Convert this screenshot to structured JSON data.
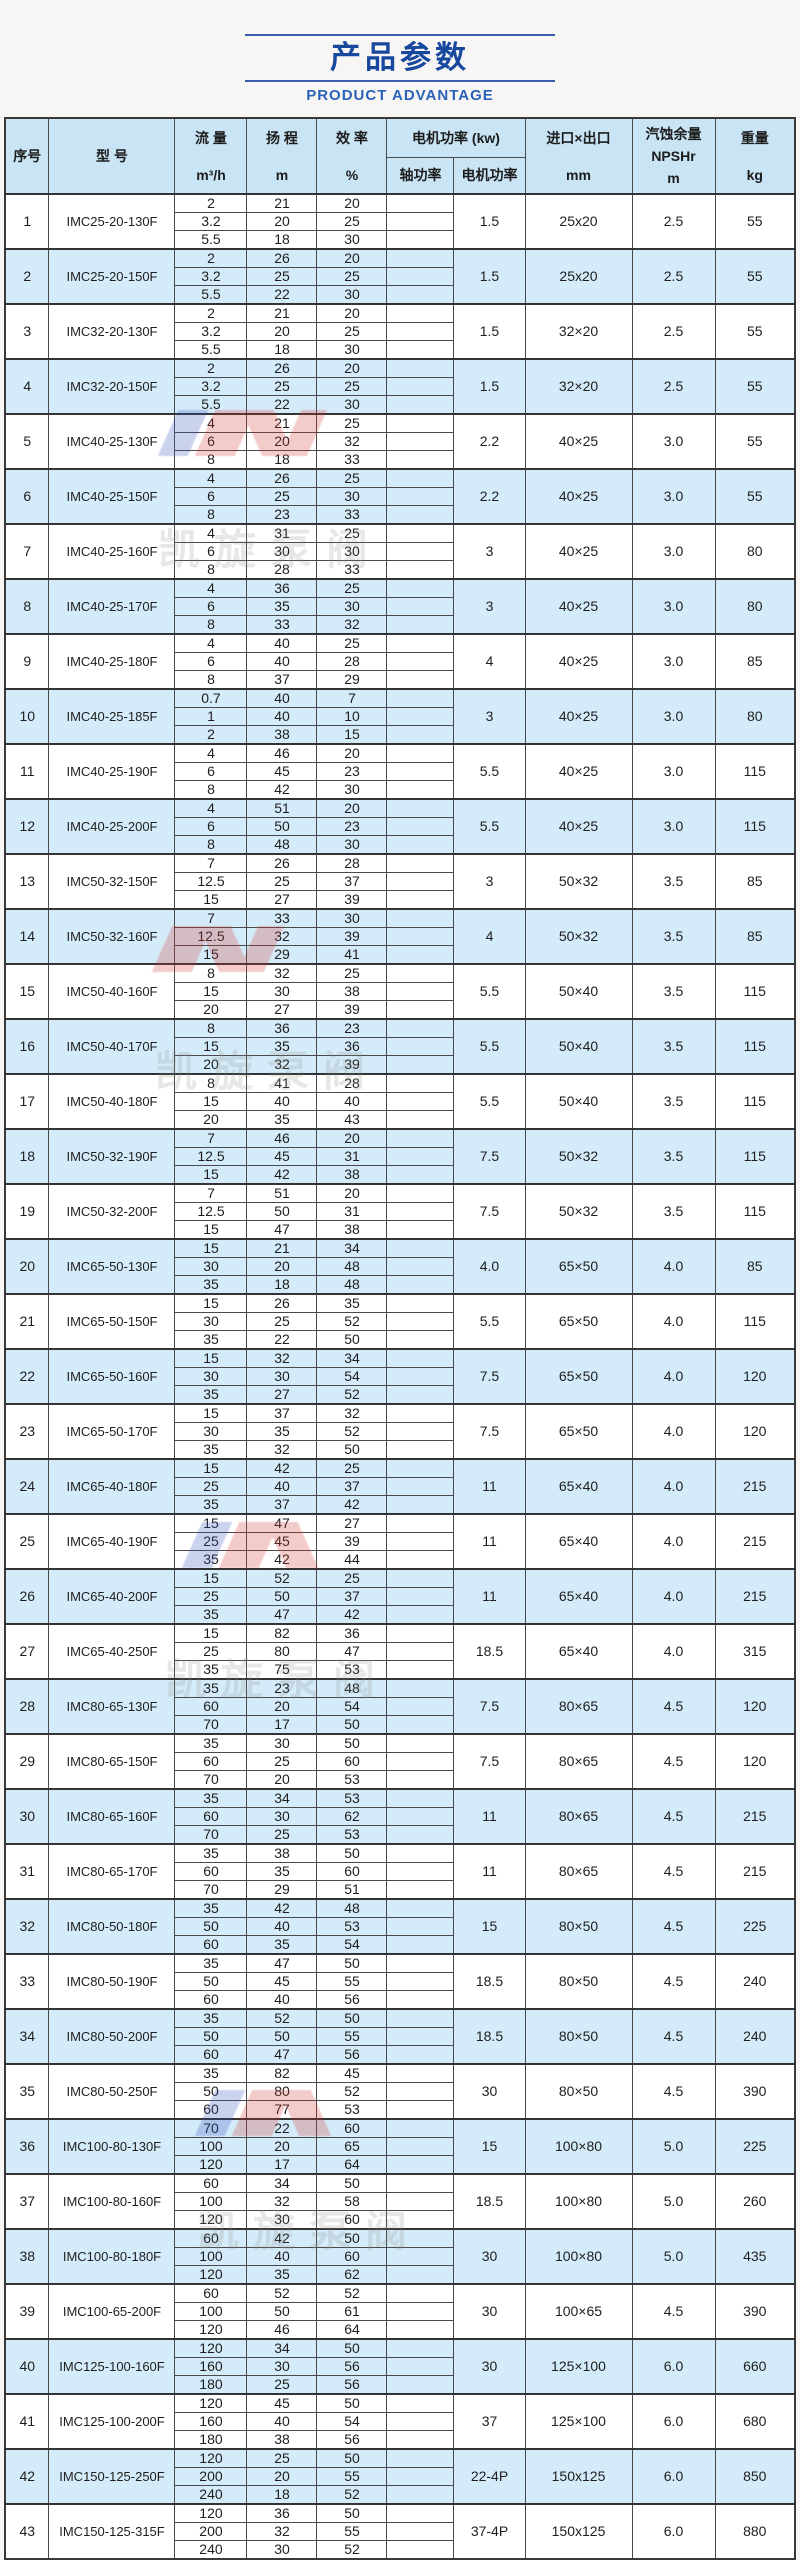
{
  "page": {
    "title": "产品参数",
    "subtitle": "PRODUCT ADVANTAGE"
  },
  "watermark": {
    "brand_text": "凯旋泵阀"
  },
  "table": {
    "headers": {
      "seq": "序号",
      "model": "型 号",
      "flow_name": "流 量",
      "flow_unit": "m³/h",
      "head_name": "扬 程",
      "head_unit": "m",
      "eff_name": "效 率",
      "eff_unit": "%",
      "power_group": "电机功率 (kw)",
      "shaft_power": "轴功率",
      "motor_power": "电机功率",
      "ports_name": "进口×出口",
      "ports_unit": "mm",
      "npsh_line1": "汽蚀余量",
      "npsh_line2": "NPSHr",
      "npsh_line3": "m",
      "weight_name": "重量",
      "weight_unit": "kg"
    },
    "rows": [
      {
        "no": "1",
        "model": "IMC25-20-130F",
        "flow": [
          "2",
          "3.2",
          "5.5"
        ],
        "head": [
          "21",
          "20",
          "18"
        ],
        "eff": [
          "20",
          "25",
          "30"
        ],
        "motor": "1.5",
        "ports": "25x20",
        "npsh": "2.5",
        "weight": "55"
      },
      {
        "no": "2",
        "model": "IMC25-20-150F",
        "flow": [
          "2",
          "3.2",
          "5.5"
        ],
        "head": [
          "26",
          "25",
          "22"
        ],
        "eff": [
          "20",
          "25",
          "30"
        ],
        "motor": "1.5",
        "ports": "25x20",
        "npsh": "2.5",
        "weight": "55"
      },
      {
        "no": "3",
        "model": "IMC32-20-130F",
        "flow": [
          "2",
          "3.2",
          "5.5"
        ],
        "head": [
          "21",
          "20",
          "18"
        ],
        "eff": [
          "20",
          "25",
          "30"
        ],
        "motor": "1.5",
        "ports": "32×20",
        "npsh": "2.5",
        "weight": "55"
      },
      {
        "no": "4",
        "model": "IMC32-20-150F",
        "flow": [
          "2",
          "3.2",
          "5.5"
        ],
        "head": [
          "26",
          "25",
          "22"
        ],
        "eff": [
          "20",
          "25",
          "30"
        ],
        "motor": "1.5",
        "ports": "32×20",
        "npsh": "2.5",
        "weight": "55"
      },
      {
        "no": "5",
        "model": "IMC40-25-130F",
        "flow": [
          "4",
          "6",
          "8"
        ],
        "head": [
          "21",
          "20",
          "18"
        ],
        "eff": [
          "25",
          "32",
          "33"
        ],
        "motor": "2.2",
        "ports": "40×25",
        "npsh": "3.0",
        "weight": "55"
      },
      {
        "no": "6",
        "model": "IMC40-25-150F",
        "flow": [
          "4",
          "6",
          "8"
        ],
        "head": [
          "26",
          "25",
          "23"
        ],
        "eff": [
          "25",
          "30",
          "33"
        ],
        "motor": "2.2",
        "ports": "40×25",
        "npsh": "3.0",
        "weight": "55"
      },
      {
        "no": "7",
        "model": "IMC40-25-160F",
        "flow": [
          "4",
          "6",
          "8"
        ],
        "head": [
          "31",
          "30",
          "28"
        ],
        "eff": [
          "25",
          "30",
          "33"
        ],
        "motor": "3",
        "ports": "40×25",
        "npsh": "3.0",
        "weight": "80"
      },
      {
        "no": "8",
        "model": "IMC40-25-170F",
        "flow": [
          "4",
          "6",
          "8"
        ],
        "head": [
          "36",
          "35",
          "33"
        ],
        "eff": [
          "25",
          "30",
          "32"
        ],
        "motor": "3",
        "ports": "40×25",
        "npsh": "3.0",
        "weight": "80"
      },
      {
        "no": "9",
        "model": "IMC40-25-180F",
        "flow": [
          "4",
          "6",
          "8"
        ],
        "head": [
          "40",
          "40",
          "37"
        ],
        "eff": [
          "25",
          "28",
          "29"
        ],
        "motor": "4",
        "ports": "40×25",
        "npsh": "3.0",
        "weight": "85"
      },
      {
        "no": "10",
        "model": "IMC40-25-185F",
        "flow": [
          "0.7",
          "1",
          "2"
        ],
        "head": [
          "40",
          "40",
          "38"
        ],
        "eff": [
          "7",
          "10",
          "15"
        ],
        "motor": "3",
        "ports": "40×25",
        "npsh": "3.0",
        "weight": "80"
      },
      {
        "no": "11",
        "model": "IMC40-25-190F",
        "flow": [
          "4",
          "6",
          "8"
        ],
        "head": [
          "46",
          "45",
          "42"
        ],
        "eff": [
          "20",
          "23",
          "30"
        ],
        "motor": "5.5",
        "ports": "40×25",
        "npsh": "3.0",
        "weight": "115"
      },
      {
        "no": "12",
        "model": "IMC40-25-200F",
        "flow": [
          "4",
          "6",
          "8"
        ],
        "head": [
          "51",
          "50",
          "48"
        ],
        "eff": [
          "20",
          "23",
          "30"
        ],
        "motor": "5.5",
        "ports": "40×25",
        "npsh": "3.0",
        "weight": "115"
      },
      {
        "no": "13",
        "model": "IMC50-32-150F",
        "flow": [
          "7",
          "12.5",
          "15"
        ],
        "head": [
          "26",
          "25",
          "27"
        ],
        "eff": [
          "28",
          "37",
          "39"
        ],
        "motor": "3",
        "ports": "50×32",
        "npsh": "3.5",
        "weight": "85"
      },
      {
        "no": "14",
        "model": "IMC50-32-160F",
        "flow": [
          "7",
          "12.5",
          "15"
        ],
        "head": [
          "33",
          "32",
          "29"
        ],
        "eff": [
          "30",
          "39",
          "41"
        ],
        "motor": "4",
        "ports": "50×32",
        "npsh": "3.5",
        "weight": "85"
      },
      {
        "no": "15",
        "model": "IMC50-40-160F",
        "flow": [
          "8",
          "15",
          "20"
        ],
        "head": [
          "32",
          "30",
          "27"
        ],
        "eff": [
          "25",
          "38",
          "39"
        ],
        "motor": "5.5",
        "ports": "50×40",
        "npsh": "3.5",
        "weight": "115"
      },
      {
        "no": "16",
        "model": "IMC50-40-170F",
        "flow": [
          "8",
          "15",
          "20"
        ],
        "head": [
          "36",
          "35",
          "32"
        ],
        "eff": [
          "23",
          "36",
          "39"
        ],
        "motor": "5.5",
        "ports": "50×40",
        "npsh": "3.5",
        "weight": "115"
      },
      {
        "no": "17",
        "model": "IMC50-40-180F",
        "flow": [
          "8",
          "15",
          "20"
        ],
        "head": [
          "41",
          "40",
          "35"
        ],
        "eff": [
          "28",
          "40",
          "43"
        ],
        "motor": "5.5",
        "ports": "50×40",
        "npsh": "3.5",
        "weight": "115"
      },
      {
        "no": "18",
        "model": "IMC50-32-190F",
        "flow": [
          "7",
          "12.5",
          "15"
        ],
        "head": [
          "46",
          "45",
          "42"
        ],
        "eff": [
          "20",
          "31",
          "38"
        ],
        "motor": "7.5",
        "ports": "50×32",
        "npsh": "3.5",
        "weight": "115"
      },
      {
        "no": "19",
        "model": "IMC50-32-200F",
        "flow": [
          "7",
          "12.5",
          "15"
        ],
        "head": [
          "51",
          "50",
          "47"
        ],
        "eff": [
          "20",
          "31",
          "38"
        ],
        "motor": "7.5",
        "ports": "50×32",
        "npsh": "3.5",
        "weight": "115"
      },
      {
        "no": "20",
        "model": "IMC65-50-130F",
        "flow": [
          "15",
          "30",
          "35"
        ],
        "head": [
          "21",
          "20",
          "18"
        ],
        "eff": [
          "34",
          "48",
          "48"
        ],
        "motor": "4.0",
        "ports": "65×50",
        "npsh": "4.0",
        "weight": "85"
      },
      {
        "no": "21",
        "model": "IMC65-50-150F",
        "flow": [
          "15",
          "30",
          "35"
        ],
        "head": [
          "26",
          "25",
          "22"
        ],
        "eff": [
          "35",
          "52",
          "50"
        ],
        "motor": "5.5",
        "ports": "65×50",
        "npsh": "4.0",
        "weight": "115"
      },
      {
        "no": "22",
        "model": "IMC65-50-160F",
        "flow": [
          "15",
          "30",
          "35"
        ],
        "head": [
          "32",
          "30",
          "27"
        ],
        "eff": [
          "34",
          "54",
          "52"
        ],
        "motor": "7.5",
        "ports": "65×50",
        "npsh": "4.0",
        "weight": "120"
      },
      {
        "no": "23",
        "model": "IMC65-50-170F",
        "flow": [
          "15",
          "30",
          "35"
        ],
        "head": [
          "37",
          "35",
          "32"
        ],
        "eff": [
          "32",
          "52",
          "50"
        ],
        "motor": "7.5",
        "ports": "65×50",
        "npsh": "4.0",
        "weight": "120"
      },
      {
        "no": "24",
        "model": "IMC65-40-180F",
        "flow": [
          "15",
          "25",
          "35"
        ],
        "head": [
          "42",
          "40",
          "37"
        ],
        "eff": [
          "25",
          "37",
          "42"
        ],
        "motor": "11",
        "ports": "65×40",
        "npsh": "4.0",
        "weight": "215"
      },
      {
        "no": "25",
        "model": "IMC65-40-190F",
        "flow": [
          "15",
          "25",
          "35"
        ],
        "head": [
          "47",
          "45",
          "42"
        ],
        "eff": [
          "27",
          "39",
          "44"
        ],
        "motor": "11",
        "ports": "65×40",
        "npsh": "4.0",
        "weight": "215"
      },
      {
        "no": "26",
        "model": "IMC65-40-200F",
        "flow": [
          "15",
          "25",
          "35"
        ],
        "head": [
          "52",
          "50",
          "47"
        ],
        "eff": [
          "25",
          "37",
          "42"
        ],
        "motor": "11",
        "ports": "65×40",
        "npsh": "4.0",
        "weight": "215"
      },
      {
        "no": "27",
        "model": "IMC65-40-250F",
        "flow": [
          "15",
          "25",
          "35"
        ],
        "head": [
          "82",
          "80",
          "75"
        ],
        "eff": [
          "36",
          "47",
          "53"
        ],
        "motor": "18.5",
        "ports": "65×40",
        "npsh": "4.0",
        "weight": "315"
      },
      {
        "no": "28",
        "model": "IMC80-65-130F",
        "flow": [
          "35",
          "60",
          "70"
        ],
        "head": [
          "23",
          "20",
          "17"
        ],
        "eff": [
          "48",
          "54",
          "50"
        ],
        "motor": "7.5",
        "ports": "80×65",
        "npsh": "4.5",
        "weight": "120"
      },
      {
        "no": "29",
        "model": "IMC80-65-150F",
        "flow": [
          "35",
          "60",
          "70"
        ],
        "head": [
          "30",
          "25",
          "20"
        ],
        "eff": [
          "50",
          "60",
          "53"
        ],
        "motor": "7.5",
        "ports": "80×65",
        "npsh": "4.5",
        "weight": "120"
      },
      {
        "no": "30",
        "model": "IMC80-65-160F",
        "flow": [
          "35",
          "60",
          "70"
        ],
        "head": [
          "34",
          "30",
          "25"
        ],
        "eff": [
          "53",
          "62",
          "53"
        ],
        "motor": "11",
        "ports": "80×65",
        "npsh": "4.5",
        "weight": "215"
      },
      {
        "no": "31",
        "model": "IMC80-65-170F",
        "flow": [
          "35",
          "60",
          "70"
        ],
        "head": [
          "38",
          "35",
          "29"
        ],
        "eff": [
          "50",
          "60",
          "51"
        ],
        "motor": "11",
        "ports": "80×65",
        "npsh": "4.5",
        "weight": "215"
      },
      {
        "no": "32",
        "model": "IMC80-50-180F",
        "flow": [
          "35",
          "50",
          "60"
        ],
        "head": [
          "42",
          "40",
          "35"
        ],
        "eff": [
          "48",
          "53",
          "54"
        ],
        "motor": "15",
        "ports": "80×50",
        "npsh": "4.5",
        "weight": "225"
      },
      {
        "no": "33",
        "model": "IMC80-50-190F",
        "flow": [
          "35",
          "50",
          "60"
        ],
        "head": [
          "47",
          "45",
          "40"
        ],
        "eff": [
          "50",
          "55",
          "56"
        ],
        "motor": "18.5",
        "ports": "80×50",
        "npsh": "4.5",
        "weight": "240"
      },
      {
        "no": "34",
        "model": "IMC80-50-200F",
        "flow": [
          "35",
          "50",
          "60"
        ],
        "head": [
          "52",
          "50",
          "47"
        ],
        "eff": [
          "50",
          "55",
          "56"
        ],
        "motor": "18.5",
        "ports": "80×50",
        "npsh": "4.5",
        "weight": "240"
      },
      {
        "no": "35",
        "model": "IMC80-50-250F",
        "flow": [
          "35",
          "50",
          "60"
        ],
        "head": [
          "82",
          "80",
          "77"
        ],
        "eff": [
          "45",
          "52",
          "53"
        ],
        "motor": "30",
        "ports": "80×50",
        "npsh": "4.5",
        "weight": "390"
      },
      {
        "no": "36",
        "model": "IMC100-80-130F",
        "flow": [
          "70",
          "100",
          "120"
        ],
        "head": [
          "22",
          "20",
          "17"
        ],
        "eff": [
          "60",
          "65",
          "64"
        ],
        "motor": "15",
        "ports": "100×80",
        "npsh": "5.0",
        "weight": "225"
      },
      {
        "no": "37",
        "model": "IMC100-80-160F",
        "flow": [
          "60",
          "100",
          "120"
        ],
        "head": [
          "34",
          "32",
          "30"
        ],
        "eff": [
          "50",
          "58",
          "60"
        ],
        "motor": "18.5",
        "ports": "100×80",
        "npsh": "5.0",
        "weight": "260"
      },
      {
        "no": "38",
        "model": "IMC100-80-180F",
        "flow": [
          "60",
          "100",
          "120"
        ],
        "head": [
          "42",
          "40",
          "35"
        ],
        "eff": [
          "50",
          "60",
          "62"
        ],
        "motor": "30",
        "ports": "100×80",
        "npsh": "5.0",
        "weight": "435"
      },
      {
        "no": "39",
        "model": "IMC100-65-200F",
        "flow": [
          "60",
          "100",
          "120"
        ],
        "head": [
          "52",
          "50",
          "46"
        ],
        "eff": [
          "52",
          "61",
          "64"
        ],
        "motor": "30",
        "ports": "100×65",
        "npsh": "4.5",
        "weight": "390"
      },
      {
        "no": "40",
        "model": "IMC125-100-160F",
        "flow": [
          "120",
          "160",
          "180"
        ],
        "head": [
          "34",
          "30",
          "25"
        ],
        "eff": [
          "50",
          "56",
          "56"
        ],
        "motor": "30",
        "ports": "125×100",
        "npsh": "6.0",
        "weight": "660"
      },
      {
        "no": "41",
        "model": "IMC125-100-200F",
        "flow": [
          "120",
          "160",
          "180"
        ],
        "head": [
          "45",
          "40",
          "38"
        ],
        "eff": [
          "50",
          "54",
          "56"
        ],
        "motor": "37",
        "ports": "125×100",
        "npsh": "6.0",
        "weight": "680"
      },
      {
        "no": "42",
        "model": "IMC150-125-250F",
        "flow": [
          "120",
          "200",
          "240"
        ],
        "head": [
          "25",
          "20",
          "18"
        ],
        "eff": [
          "50",
          "55",
          "52"
        ],
        "motor": "22-4P",
        "ports": "150x125",
        "npsh": "6.0",
        "weight": "850"
      },
      {
        "no": "43",
        "model": "IMC150-125-315F",
        "flow": [
          "120",
          "200",
          "240"
        ],
        "head": [
          "36",
          "32",
          "30"
        ],
        "eff": [
          "50",
          "55",
          "52"
        ],
        "motor": "37-4P",
        "ports": "150x125",
        "npsh": "6.0",
        "weight": "880"
      }
    ]
  }
}
